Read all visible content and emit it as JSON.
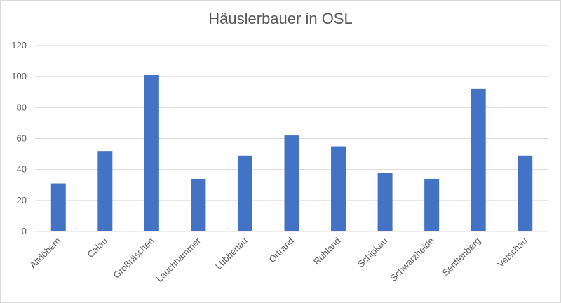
{
  "chart_data": {
    "type": "bar",
    "title": "Häuslerbauer in OSL",
    "xlabel": "",
    "ylabel": "",
    "categories": [
      "Altdöbern",
      "Calau",
      "Großräschen",
      "Lauchhammer",
      "Lübbenau",
      "Ortrand",
      "Ruhland",
      "Schipkau",
      "Schwarzheide",
      "Senftenberg",
      "Vetschau"
    ],
    "values": [
      31,
      52,
      101,
      34,
      49,
      62,
      55,
      38,
      34,
      92,
      49
    ],
    "ylim": [
      0,
      120
    ],
    "yticks": [
      0,
      20,
      40,
      60,
      80,
      100,
      120
    ],
    "grid": true,
    "legend": "none",
    "colors": {
      "bar": "#4472c4",
      "grid": "#d9d9d9",
      "axis": "#d9d9d9",
      "text": "#595959"
    }
  }
}
